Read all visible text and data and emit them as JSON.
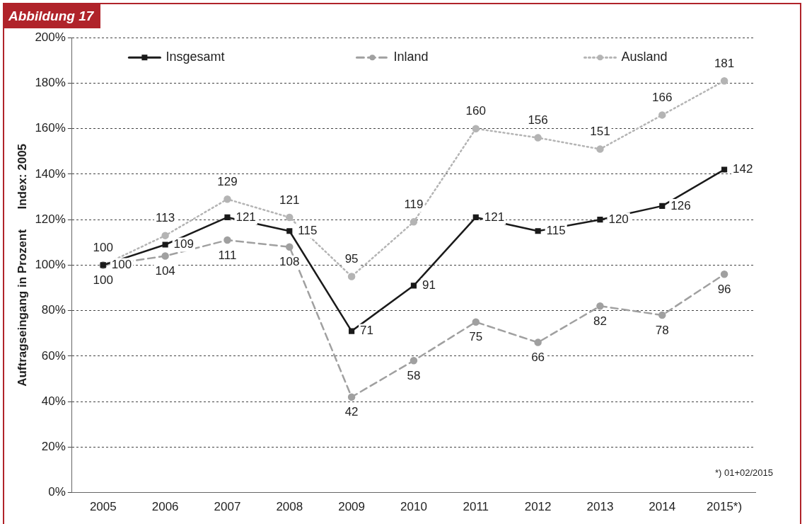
{
  "chart_data": {
    "type": "line",
    "title": "Abbildung 17",
    "ylabel": "Auftragseingang in Prozent      Index: 2005",
    "categories": [
      "2005",
      "2006",
      "2007",
      "2008",
      "2009",
      "2010",
      "2011",
      "2012",
      "2013",
      "2014",
      "2015*)"
    ],
    "series": [
      {
        "name": "Insgesamt",
        "color": "#1a1a1a",
        "marker": "square",
        "line_style": "solid",
        "values": [
          100,
          109,
          121,
          115,
          71,
          91,
          121,
          115,
          120,
          126,
          142
        ]
      },
      {
        "name": "Inland",
        "color": "#a0a0a0",
        "marker": "circle",
        "line_style": "dashed",
        "values": [
          100,
          104,
          111,
          108,
          42,
          58,
          75,
          66,
          82,
          78,
          96
        ]
      },
      {
        "name": "Ausland",
        "color": "#b4b4b4",
        "marker": "circle",
        "line_style": "dotted",
        "values": [
          100,
          113,
          129,
          121,
          95,
          119,
          160,
          156,
          151,
          166,
          181
        ]
      }
    ],
    "ylim": [
      0,
      200
    ],
    "yticks": [
      {
        "value": 0,
        "label": "0%"
      },
      {
        "value": 20,
        "label": "20%"
      },
      {
        "value": 40,
        "label": "40%"
      },
      {
        "value": 60,
        "label": "60%"
      },
      {
        "value": 80,
        "label": "80%"
      },
      {
        "value": 100,
        "label": "100%"
      },
      {
        "value": 120,
        "label": "120%"
      },
      {
        "value": 140,
        "label": "140%"
      },
      {
        "value": 160,
        "label": "160%"
      },
      {
        "value": 180,
        "label": "180%"
      },
      {
        "value": 200,
        "label": "200%"
      }
    ],
    "grid": "y",
    "legend": "top",
    "data_labels": true,
    "annotations": [
      "*) 01+02/2015"
    ]
  }
}
